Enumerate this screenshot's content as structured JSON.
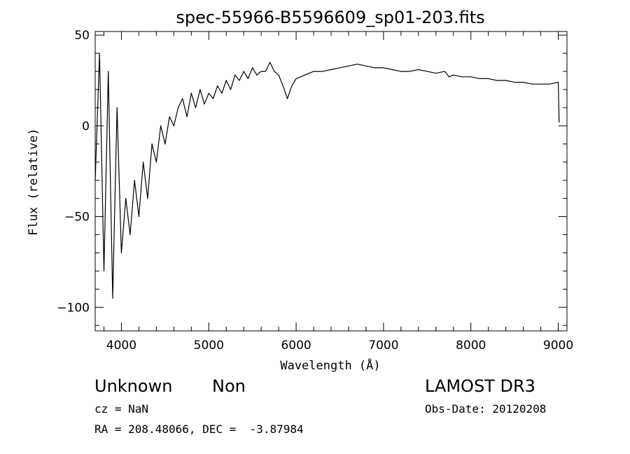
{
  "chart_data": {
    "type": "line",
    "title": "spec-55966-B5596609_sp01-203.fits",
    "xlabel": "Wavelength (Å)",
    "ylabel": "Flux (relative)",
    "xlim": [
      3700,
      9100
    ],
    "ylim": [
      -113,
      52
    ],
    "x_ticks": [
      4000,
      5000,
      6000,
      7000,
      8000,
      9000
    ],
    "y_ticks": [
      -100,
      -50,
      0,
      50
    ],
    "grid": false,
    "series": [
      {
        "x": [
          3700,
          3750,
          3800,
          3850,
          3900,
          3950,
          4000,
          4050,
          4100,
          4150,
          4200,
          4250,
          4300,
          4350,
          4400,
          4450,
          4500,
          4550,
          4600,
          4650,
          4700,
          4750,
          4800,
          4850,
          4900,
          4950,
          5000,
          5050,
          5100,
          5150,
          5200,
          5250,
          5300,
          5350,
          5400,
          5450,
          5500,
          5550,
          5600,
          5650,
          5700,
          5750,
          5800,
          5850,
          5900,
          5950,
          6000,
          6100,
          6200,
          6300,
          6400,
          6500,
          6600,
          6700,
          6800,
          6900,
          7000,
          7100,
          7200,
          7300,
          7400,
          7500,
          7600,
          7700,
          7750,
          7800,
          7900,
          8000,
          8100,
          8200,
          8300,
          8400,
          8500,
          8600,
          8700,
          8800,
          8900,
          9000,
          9010
        ],
        "y": [
          -30,
          40,
          -80,
          30,
          -95,
          10,
          -70,
          -40,
          -60,
          -30,
          -50,
          -20,
          -40,
          -10,
          -20,
          0,
          -10,
          5,
          0,
          10,
          15,
          5,
          18,
          10,
          20,
          12,
          18,
          15,
          22,
          18,
          25,
          20,
          28,
          25,
          30,
          26,
          32,
          28,
          30,
          30,
          35,
          30,
          28,
          22,
          15,
          22,
          26,
          28,
          30,
          30,
          31,
          32,
          33,
          34,
          33,
          32,
          32,
          31,
          30,
          30,
          31,
          30,
          29,
          30,
          27,
          28,
          27,
          27,
          26,
          26,
          25,
          25,
          24,
          24,
          23,
          23,
          23,
          24,
          2
        ]
      }
    ]
  },
  "info": {
    "object_class": "Unknown",
    "object_subclass": "Non",
    "survey": "LAMOST DR3",
    "cz": "cz = NaN",
    "obs_date": "Obs-Date: 20120208",
    "coords": "RA = 208.48066, DEC =  -3.87984"
  }
}
